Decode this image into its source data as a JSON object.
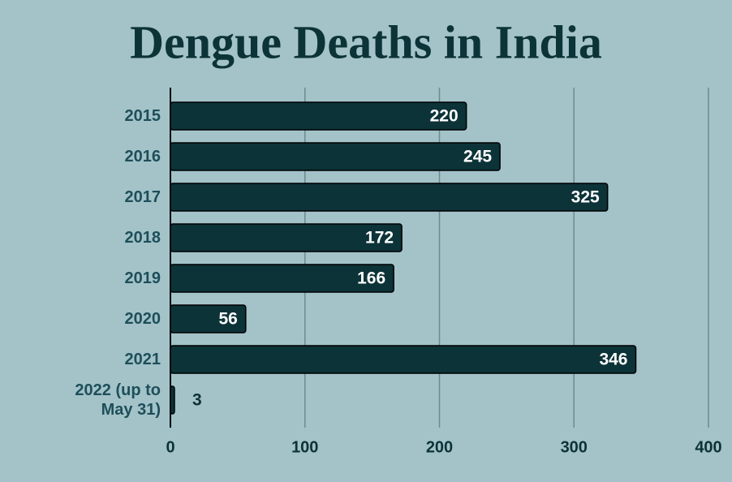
{
  "chart_data": {
    "type": "barh",
    "title": "Dengue Deaths in India",
    "categories": [
      "2015",
      "2016",
      "2017",
      "2018",
      "2019",
      "2020",
      "2021",
      "2022 (up to May 31)"
    ],
    "values": [
      220,
      245,
      325,
      172,
      166,
      56,
      346,
      3
    ],
    "color": "#0c3338",
    "xlim": [
      0,
      400
    ],
    "xticks": [
      0,
      100,
      200,
      300,
      400
    ],
    "grid": true
  }
}
